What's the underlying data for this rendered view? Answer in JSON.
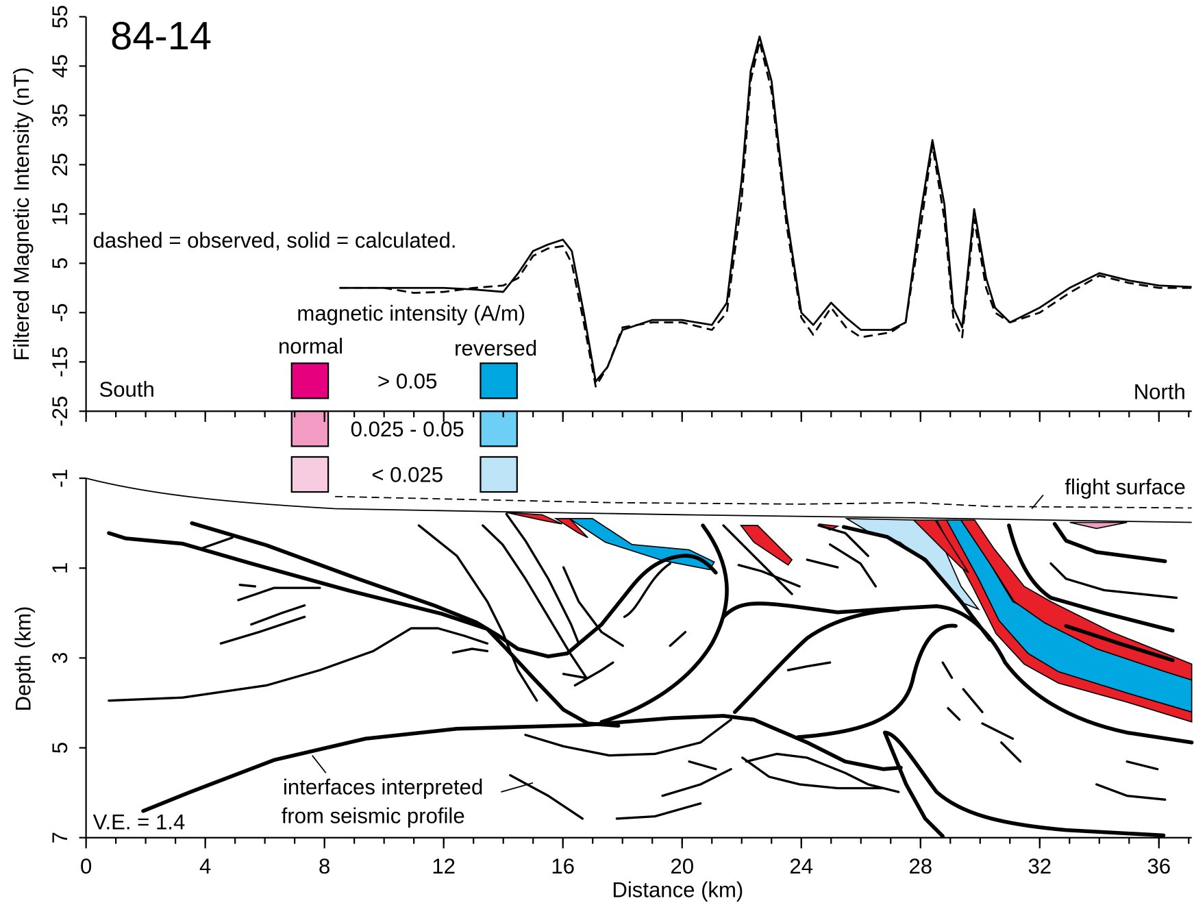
{
  "chart_data": [
    {
      "type": "line",
      "title": "84-14",
      "note": "dashed = observed, solid = calculated.",
      "y_label": "Filtered Magnetic Intensity (nT)",
      "left_label": "South",
      "right_label": "North",
      "x": [
        8.5,
        10,
        11,
        12,
        13,
        14,
        14.5,
        15,
        15.5,
        16,
        16.3,
        16.7,
        17.1,
        17.5,
        18,
        19,
        20,
        21,
        21.5,
        22,
        22.3,
        22.6,
        23,
        23.5,
        24,
        24.4,
        25,
        25.5,
        26,
        27,
        27.5,
        28,
        28.4,
        28.8,
        29.1,
        29.4,
        29.8,
        30.2,
        30.5,
        31,
        32,
        33,
        34,
        35,
        36,
        37.1
      ],
      "series": [
        {
          "style": "dashed",
          "color": "#000000",
          "values": [
            0,
            0,
            -1,
            -0.8,
            0,
            0.5,
            2,
            6.5,
            8,
            8.5,
            5,
            -7,
            -20,
            -16,
            -8,
            -7,
            -7,
            -8.5,
            -5,
            18,
            42,
            50,
            40,
            13,
            -6,
            -9.5,
            -4,
            -8,
            -10,
            -9,
            -7,
            12,
            29,
            14,
            -6,
            -10,
            14,
            0,
            -5,
            -7,
            -5,
            -1,
            2.5,
            1,
            0,
            0
          ]
        },
        {
          "style": "solid",
          "color": "#000000",
          "values": [
            0,
            0,
            0,
            0,
            -0.3,
            -0.8,
            3,
            7.5,
            8.8,
            9.8,
            7.5,
            -5,
            -19,
            -16,
            -8.5,
            -6.5,
            -6.5,
            -7.5,
            -3,
            22,
            44,
            51,
            42,
            15,
            -5,
            -7.5,
            -3,
            -6,
            -8.5,
            -8.5,
            -7,
            15,
            30,
            17,
            -4,
            -8,
            16,
            2,
            -4,
            -7,
            -4,
            0,
            3,
            1.5,
            0.5,
            0.2
          ]
        }
      ],
      "xlim": [
        0,
        37.1
      ],
      "ylim": [
        -25,
        55
      ],
      "yticks": [
        55,
        45,
        35,
        25,
        15,
        5,
        -5,
        -15,
        -25
      ]
    },
    {
      "type": "section",
      "x_label": "Distance (km)",
      "y_label": "Depth (km)",
      "xlim": [
        0,
        37.1
      ],
      "xticks": [
        0,
        4,
        8,
        12,
        16,
        20,
        24,
        28,
        32,
        36
      ],
      "ylim": [
        -1,
        7
      ],
      "yticks": [
        -1,
        1,
        3,
        5,
        7
      ],
      "y_inverted": true,
      "flight_label": "flight surface",
      "seismic_note": [
        "interfaces interpreted",
        "from seismic profile"
      ],
      "ve_label": "V.E. = 1.4",
      "legend": {
        "title": "magnetic intensity (A/m)",
        "columns": [
          "normal",
          "reversed"
        ],
        "classes": [
          {
            "label": "> 0.05",
            "colors": [
              "#e6007e",
              "#00a7e1"
            ]
          },
          {
            "label": "0.025 - 0.05",
            "colors": [
              "#f29cc4",
              "#6dcff6"
            ]
          },
          {
            "label": "< 0.025",
            "colors": [
              "#f7cce0",
              "#bde5f7"
            ]
          }
        ]
      }
    }
  ]
}
